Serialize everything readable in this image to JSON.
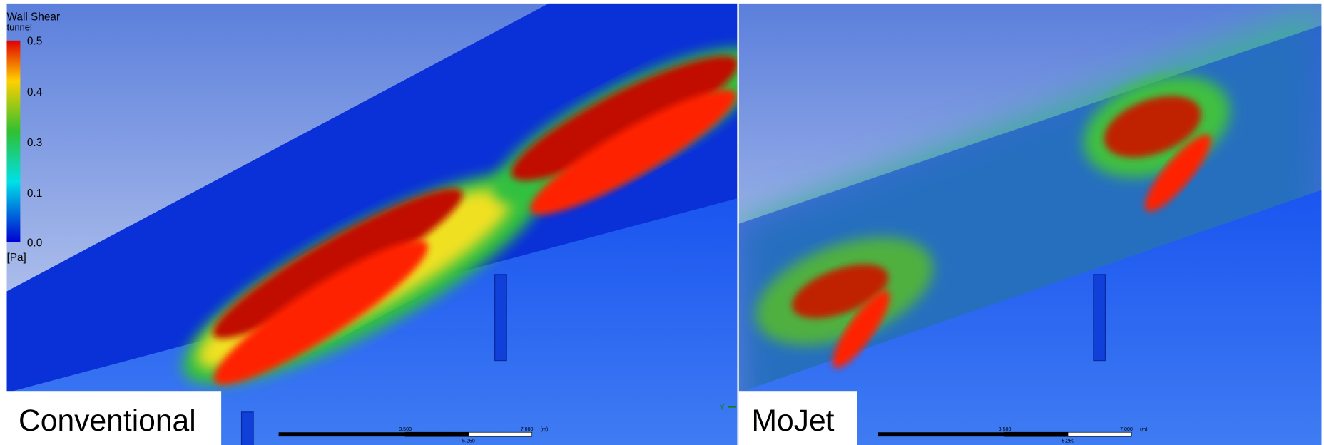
{
  "legend": {
    "title": "Wall Shear",
    "subtitle": "tunnel",
    "ticks": [
      "0.5",
      "0.4",
      "0.3",
      "0.1",
      "0.0"
    ],
    "unit": "[Pa]"
  },
  "panels": [
    {
      "label": "Conventional",
      "scale": {
        "mid": "3.500",
        "end": "7.000",
        "unit": "(m)",
        "lower": "5.250"
      }
    },
    {
      "label": "MoJet",
      "scale": {
        "mid": "3.500",
        "end": "7.000",
        "unit": "(m)",
        "lower": "5.250"
      }
    }
  ],
  "axis_label": "Y"
}
